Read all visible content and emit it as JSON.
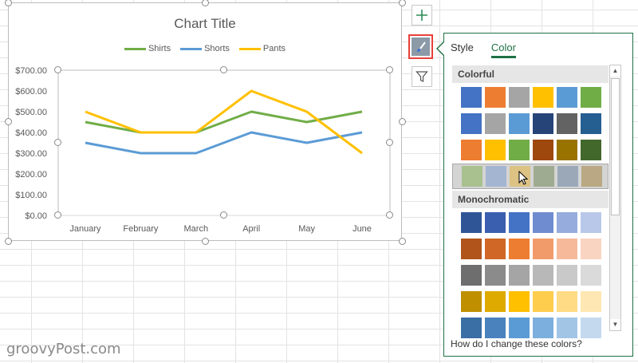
{
  "chart": {
    "title": "Chart Title",
    "legend": [
      {
        "name": "Shirts",
        "color": "#70ad47"
      },
      {
        "name": "Shorts",
        "color": "#5b9bd5"
      },
      {
        "name": "Pants",
        "color": "#ffc000"
      }
    ]
  },
  "chart_data": {
    "type": "line",
    "title": "Chart Title",
    "categories": [
      "January",
      "February",
      "March",
      "April",
      "May",
      "June"
    ],
    "series": [
      {
        "name": "Shirts",
        "color": "#70ad47",
        "values": [
          450,
          400,
          400,
          500,
          450,
          500
        ]
      },
      {
        "name": "Shorts",
        "color": "#5b9bd5",
        "values": [
          350,
          300,
          300,
          400,
          350,
          400
        ]
      },
      {
        "name": "Pants",
        "color": "#ffc000",
        "values": [
          500,
          400,
          400,
          600,
          500,
          300
        ]
      }
    ],
    "yticks": [
      "$0.00",
      "$100.00",
      "$200.00",
      "$300.00",
      "$400.00",
      "$500.00",
      "$600.00",
      "$700.00"
    ],
    "ylim": [
      0,
      700
    ],
    "grid": false,
    "legend_position": "top"
  },
  "sidebar_buttons": {
    "add": "plus-icon",
    "style": "paintbrush-icon",
    "filter": "funnel-icon"
  },
  "panel": {
    "tabs": [
      "Style",
      "Color"
    ],
    "active_tab": "Color",
    "colorful_label": "Colorful",
    "monochromatic_label": "Monochromatic",
    "help_text": "How do I change these colors?",
    "colorful_rows": [
      [
        "#4472c4",
        "#ed7d31",
        "#a5a5a5",
        "#ffc000",
        "#5b9bd5",
        "#70ad47"
      ],
      [
        "#4472c4",
        "#a5a5a5",
        "#5b9bd5",
        "#264478",
        "#636363",
        "#255e91"
      ],
      [
        "#ed7d31",
        "#ffc000",
        "#70ad47",
        "#9e480e",
        "#997300",
        "#43682b"
      ],
      [
        "#a9c08f",
        "#a3b5d1",
        "#dcc283",
        "#9fab91",
        "#9aa8b8",
        "#b9a883"
      ]
    ],
    "mono_rows": [
      [
        "#2f5597",
        "#3a5fae",
        "#4472c4",
        "#6e8ccf",
        "#95acdc",
        "#b9c8e8"
      ],
      [
        "#b0541c",
        "#d06727",
        "#ed7d31",
        "#f29b6a",
        "#f6ba9b",
        "#f9d4c1"
      ],
      [
        "#6e6e6e",
        "#8b8b8b",
        "#a5a5a5",
        "#b8b8b8",
        "#c9c9c9",
        "#dadada"
      ],
      [
        "#bf8f00",
        "#deaa00",
        "#ffc000",
        "#ffcd4d",
        "#ffdb85",
        "#ffe7b3"
      ],
      [
        "#3a6fa5",
        "#4a82bd",
        "#5b9bd5",
        "#7cafdd",
        "#a2c5e6",
        "#c4d9ee"
      ]
    ]
  },
  "watermark": "groovyPost.com"
}
